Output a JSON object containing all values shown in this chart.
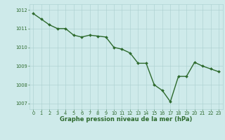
{
  "x": [
    0,
    1,
    2,
    3,
    4,
    5,
    6,
    7,
    8,
    9,
    10,
    11,
    12,
    13,
    14,
    15,
    16,
    17,
    18,
    19,
    20,
    21,
    22,
    23
  ],
  "y": [
    1011.8,
    1011.5,
    1011.2,
    1011.0,
    1011.0,
    1010.65,
    1010.55,
    1010.65,
    1010.6,
    1010.55,
    1010.0,
    1009.9,
    1009.7,
    1009.15,
    1009.15,
    1008.0,
    1007.7,
    1007.1,
    1008.45,
    1008.45,
    1009.2,
    1009.0,
    1008.85,
    1008.7
  ],
  "line_color": "#2d6a2d",
  "marker": "D",
  "marker_size": 2.0,
  "linewidth": 1.0,
  "bg_color": "#ceeaea",
  "grid_color": "#aacfcf",
  "xlabel": "Graphe pression niveau de la mer (hPa)",
  "xlabel_fontsize": 6.0,
  "xlabel_color": "#2d6a2d",
  "tick_fontsize": 4.8,
  "tick_color": "#2d6a2d",
  "ylim": [
    1006.7,
    1012.3
  ],
  "xlim": [
    -0.5,
    23.5
  ],
  "yticks": [
    1007,
    1008,
    1009,
    1010,
    1011,
    1012
  ],
  "xticks": [
    0,
    1,
    2,
    3,
    4,
    5,
    6,
    7,
    8,
    9,
    10,
    11,
    12,
    13,
    14,
    15,
    16,
    17,
    18,
    19,
    20,
    21,
    22,
    23
  ],
  "grid_linewidth": 0.4
}
